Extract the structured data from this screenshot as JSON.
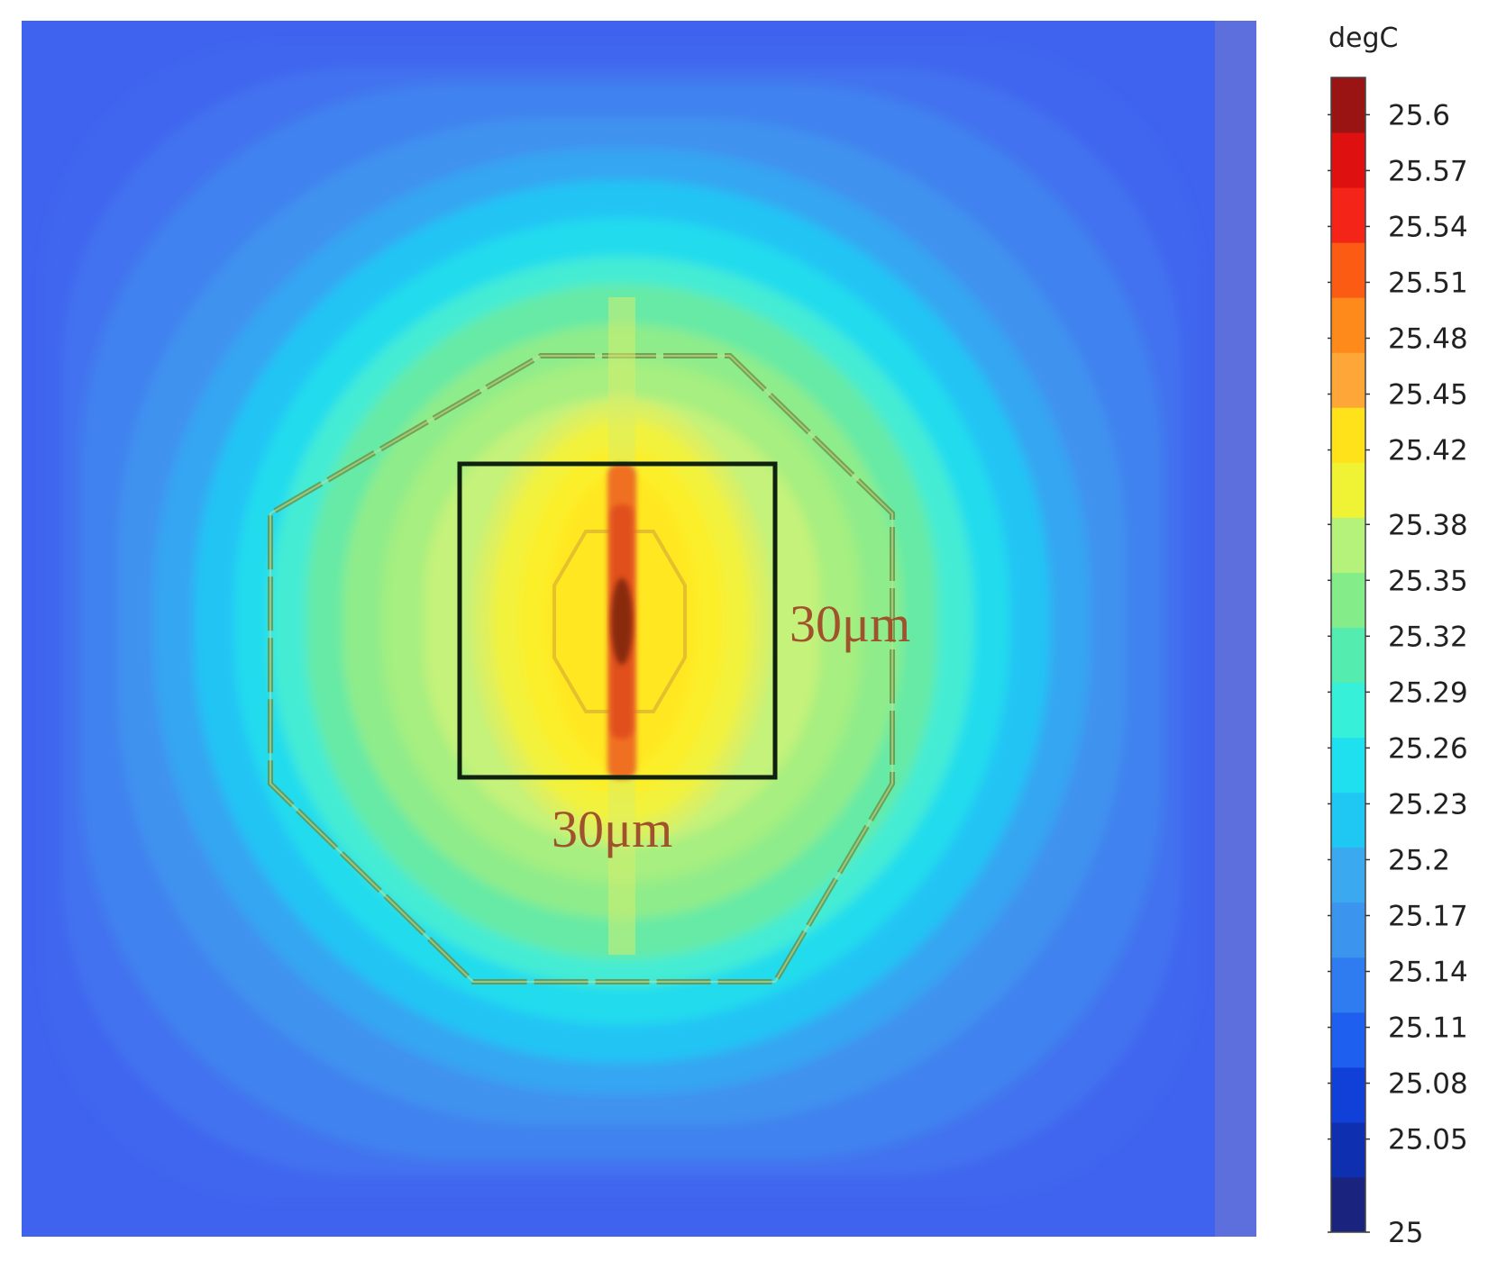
{
  "chart_data": {
    "type": "heatmap",
    "title": "",
    "colorbar": {
      "unit": "degC",
      "min": 25,
      "max": 25.62,
      "ticks": [
        25.6,
        25.57,
        25.54,
        25.51,
        25.48,
        25.45,
        25.42,
        25.38,
        25.35,
        25.32,
        25.29,
        25.26,
        25.23,
        25.2,
        25.17,
        25.14,
        25.11,
        25.08,
        25.05,
        25
      ],
      "colors": [
        "#1a237e",
        "#0d2fb0",
        "#1040d8",
        "#1e5ff0",
        "#2f7bf0",
        "#3b94ee",
        "#3aa9f0",
        "#1ec8f2",
        "#1fe0ef",
        "#36f0da",
        "#55ecb0",
        "#85ec8a",
        "#b4f27c",
        "#f0f234",
        "#ffe21a",
        "#ffa638",
        "#ff8a1c",
        "#fb5b12",
        "#f52418",
        "#de1010",
        "#9b1414"
      ]
    },
    "annotations": {
      "box_width": "30μm",
      "box_height": "30μm"
    },
    "hotspot_max": 25.62,
    "ambient": 25
  }
}
